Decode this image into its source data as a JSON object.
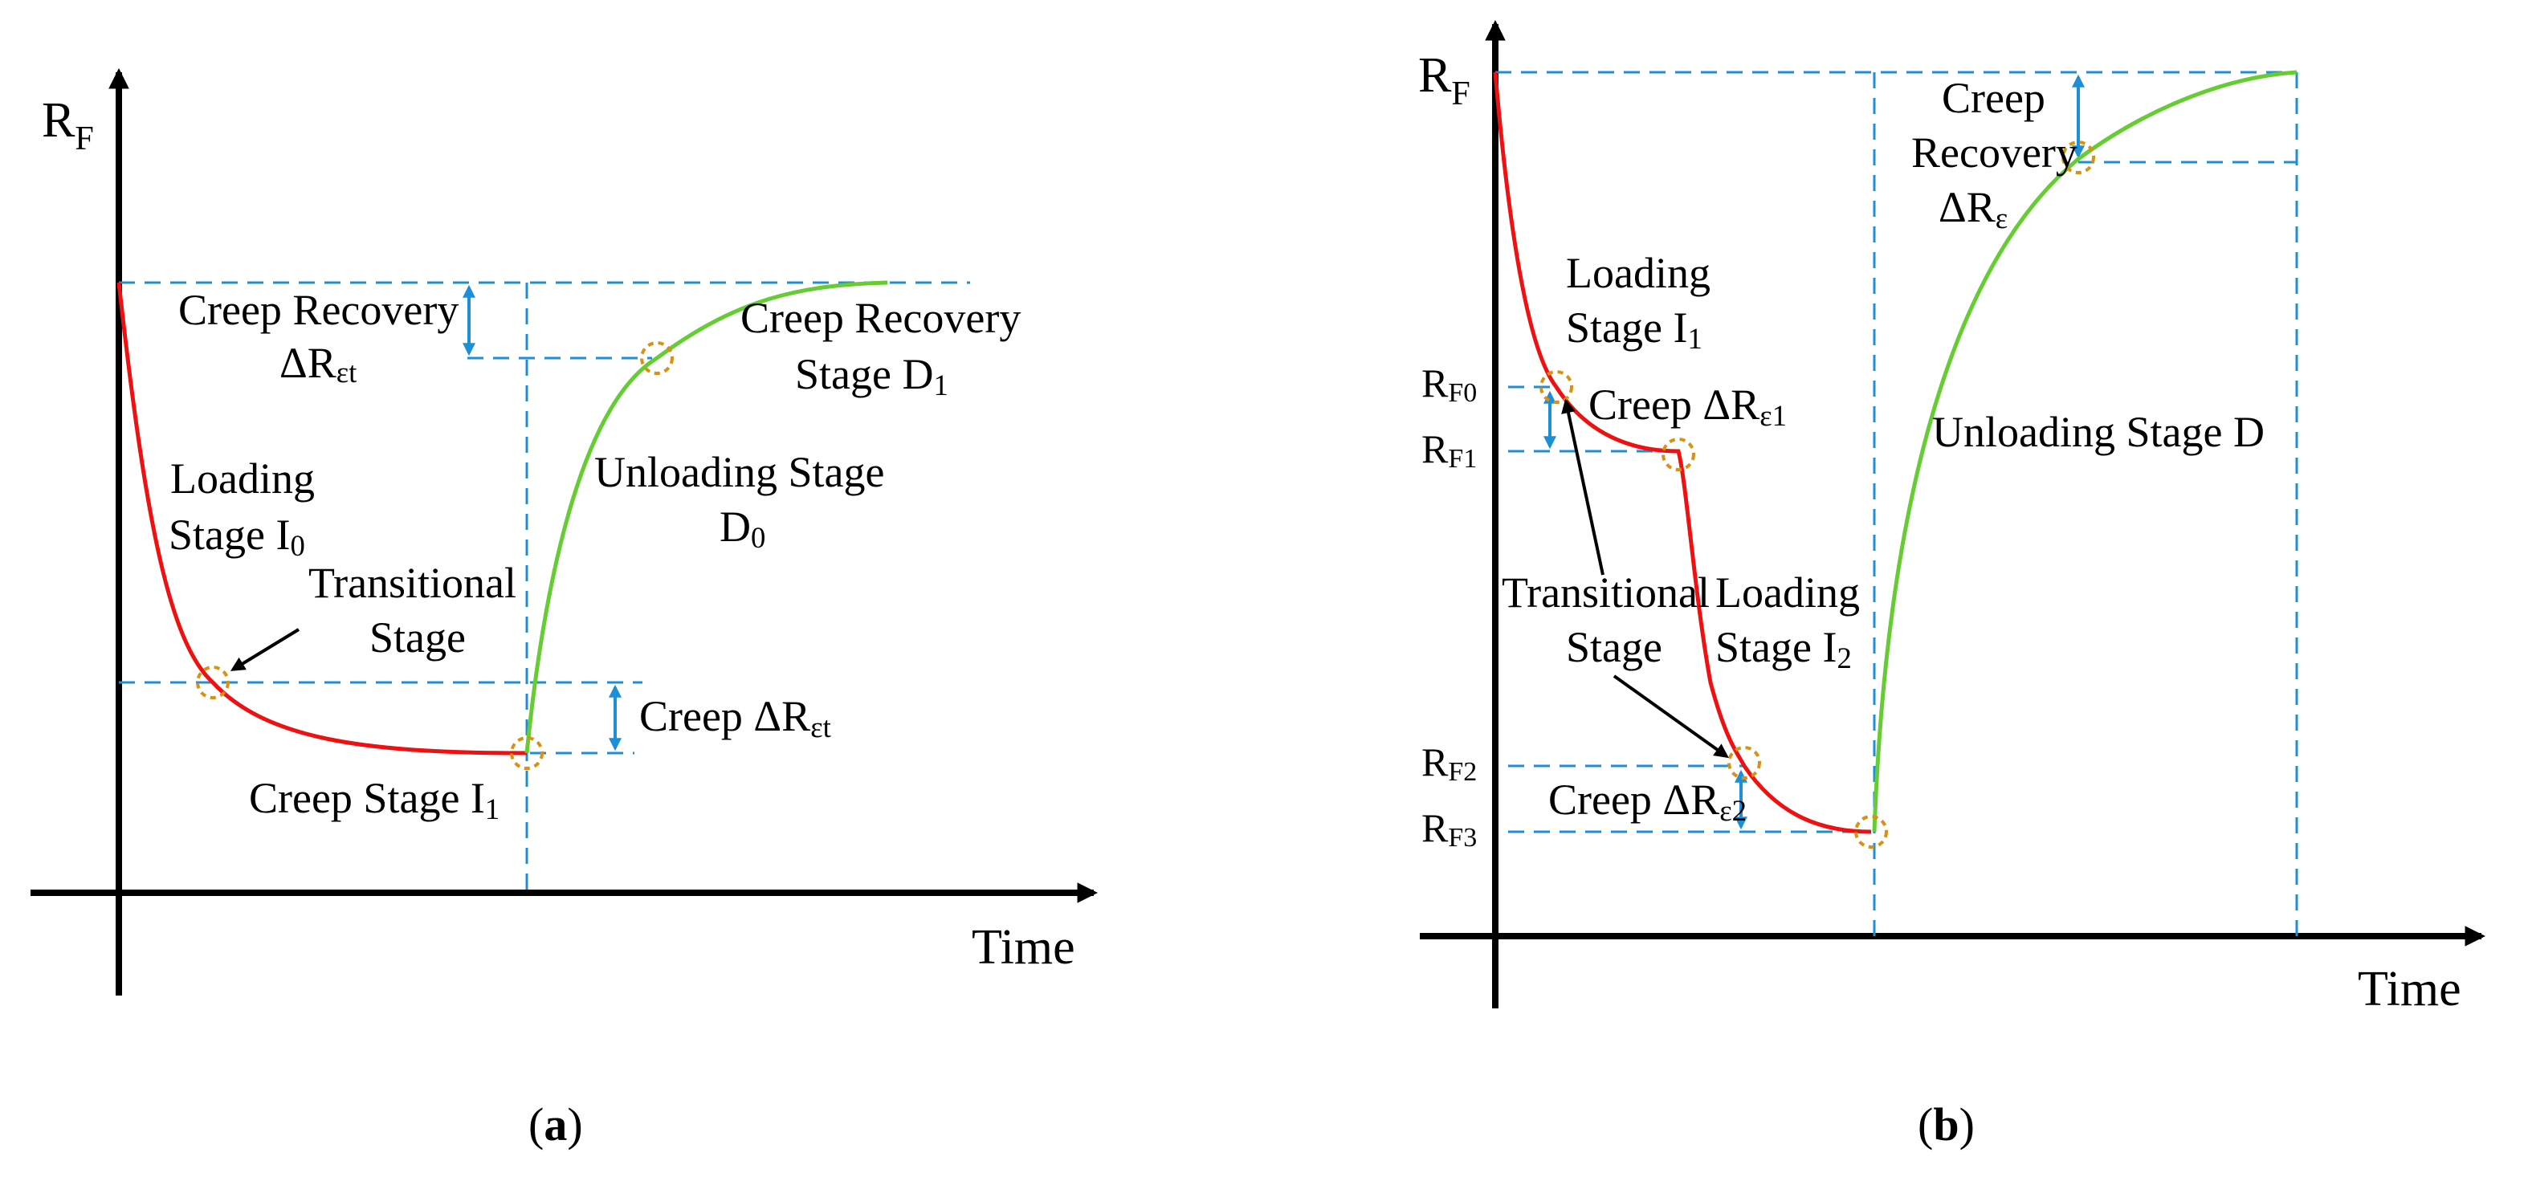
{
  "colors": {
    "loading": "#ee1111",
    "unloading": "#66cc33",
    "guide": "#1d8fd6",
    "marker": "#d9910f",
    "axis": "#000000"
  },
  "panel_a": {
    "y_axis": {
      "main": "R",
      "sub": "F"
    },
    "x_axis": "Time",
    "creep_recovery_delta": {
      "line1": "Creep Recovery",
      "line2_main": "ΔR",
      "line2_sub": "εt"
    },
    "creep_recovery_stage": {
      "line1": "Creep Recovery",
      "line2_main": "Stage D",
      "line2_sub": "1"
    },
    "unloading_stage": {
      "line1": "Unloading Stage",
      "line2_main": "D",
      "line2_sub": "0"
    },
    "loading_stage": {
      "line1": "Loading",
      "line2_main": "Stage I",
      "line2_sub": "0"
    },
    "transitional": {
      "line1": "Transitional",
      "line2": "Stage"
    },
    "creep_delta": {
      "main": "Creep ΔR",
      "sub": "εt"
    },
    "creep_stage": {
      "main": "Creep Stage I",
      "sub": "1"
    },
    "caption": {
      "open": "(",
      "letter": "a",
      "close": ")"
    }
  },
  "panel_b": {
    "y_axis": {
      "main": "R",
      "sub": "F"
    },
    "x_axis": "Time",
    "creep_recovery": {
      "line1": "Creep",
      "line2": "Recovery",
      "line3_main": "ΔR",
      "line3_sub": "ε"
    },
    "loading_stage_1": {
      "line1": "Loading",
      "line2_main": "Stage I",
      "line2_sub": "1"
    },
    "unloading_stage": "Unloading Stage D",
    "creep_delta_1": {
      "main": "Creep ΔR",
      "sub": "ε1"
    },
    "transitional": {
      "line1": "Transitional",
      "line2": "Stage"
    },
    "loading_stage_2": {
      "line1": "Loading",
      "line2_main": "Stage I",
      "line2_sub": "2"
    },
    "creep_delta_2": {
      "main": "Creep ΔR",
      "sub": "ε2"
    },
    "levels": [
      {
        "main": "R",
        "sub": "F0"
      },
      {
        "main": "R",
        "sub": "F1"
      },
      {
        "main": "R",
        "sub": "F2"
      },
      {
        "main": "R",
        "sub": "F3"
      }
    ],
    "caption": {
      "open": "(",
      "letter": "b",
      "close": ")"
    }
  }
}
